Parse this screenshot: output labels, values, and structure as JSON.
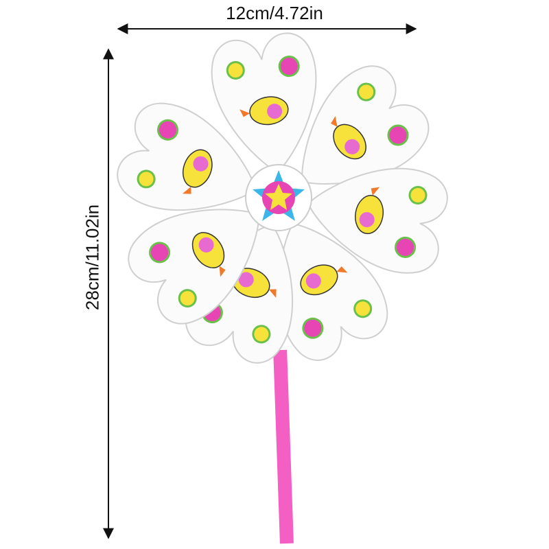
{
  "dimensions": {
    "width_label": "12cm/4.72in",
    "height_label": "28cm/11.02in"
  },
  "product": {
    "name_icon": "pinwheel-image",
    "colors": {
      "stick": "#f45fc4",
      "bird": "#f6e23a",
      "flower": "#e845b4",
      "petal": "#ffffff",
      "accent": "#f07a2a"
    }
  }
}
